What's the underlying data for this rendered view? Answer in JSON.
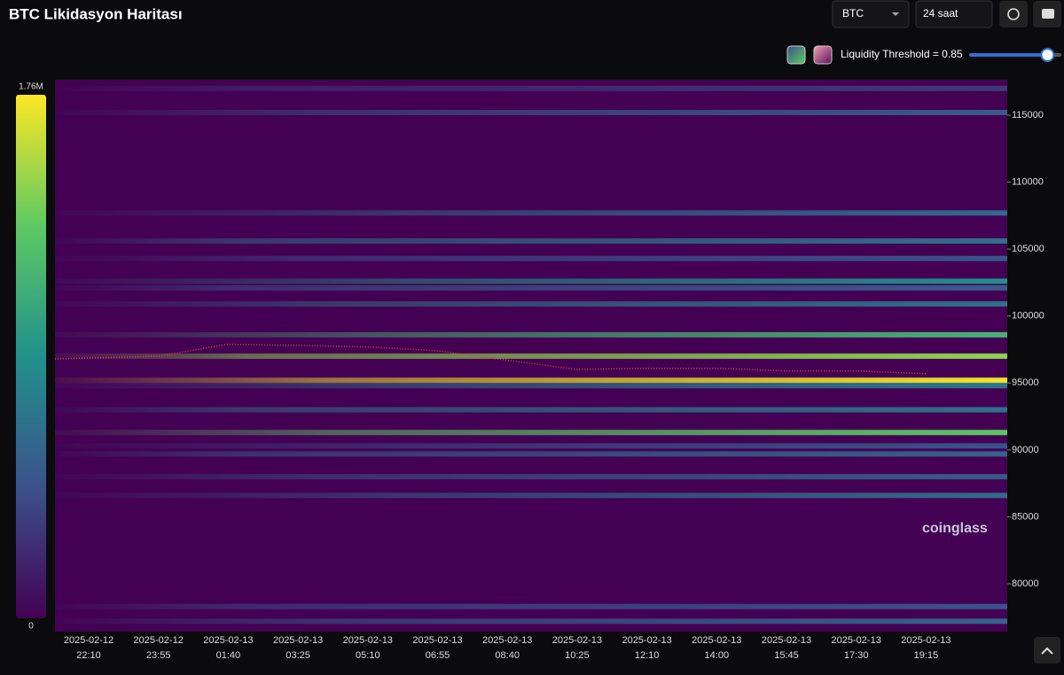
{
  "header": {
    "title": "BTC Likidasyon Haritası"
  },
  "controls": {
    "symbol": "BTC",
    "range": "24 saat",
    "threshold_label": "Liquidity Threshold = 0.85",
    "threshold": 0.85,
    "watermark": "coinglass"
  },
  "chart_data": {
    "type": "heatmap",
    "x": [
      {
        "date": "2025-02-12",
        "time": "22:10"
      },
      {
        "date": "2025-02-12",
        "time": "23:55"
      },
      {
        "date": "2025-02-13",
        "time": "01:40"
      },
      {
        "date": "2025-02-13",
        "time": "03:25"
      },
      {
        "date": "2025-02-13",
        "time": "05:10"
      },
      {
        "date": "2025-02-13",
        "time": "06:55"
      },
      {
        "date": "2025-02-13",
        "time": "08:40"
      },
      {
        "date": "2025-02-13",
        "time": "10:25"
      },
      {
        "date": "2025-02-13",
        "time": "12:10"
      },
      {
        "date": "2025-02-13",
        "time": "14:00"
      },
      {
        "date": "2025-02-13",
        "time": "15:45"
      },
      {
        "date": "2025-02-13",
        "time": "17:30"
      },
      {
        "date": "2025-02-13",
        "time": "19:15"
      }
    ],
    "ylim": [
      76430,
      117650
    ],
    "yticks": [
      80000,
      85000,
      90000,
      95000,
      100000,
      105000,
      110000,
      115000
    ],
    "zlim": [
      0,
      1760000
    ],
    "zticks": [
      {
        "value": 0,
        "label": "0"
      },
      {
        "value": 1760000,
        "label": "1.76M"
      }
    ],
    "price": {
      "color": "#e0403a",
      "values": [
        96800,
        97000,
        97900,
        97800,
        97700,
        97400,
        96700,
        96000,
        96100,
        96100,
        95900,
        95900,
        95700
      ]
    },
    "bands": [
      {
        "price": 117000,
        "value": 300000
      },
      {
        "price": 115200,
        "value": 500000
      },
      {
        "price": 107700,
        "value": 600000
      },
      {
        "price": 105600,
        "value": 650000
      },
      {
        "price": 104300,
        "value": 450000
      },
      {
        "price": 102600,
        "value": 850000
      },
      {
        "price": 102100,
        "value": 500000
      },
      {
        "price": 100900,
        "value": 650000
      },
      {
        "price": 98600,
        "value": 1150000
      },
      {
        "price": 97000,
        "value": 1450000
      },
      {
        "price": 95200,
        "value": 1720000
      },
      {
        "price": 94800,
        "value": 700000
      },
      {
        "price": 93000,
        "value": 650000
      },
      {
        "price": 91300,
        "value": 1300000
      },
      {
        "price": 90300,
        "value": 450000
      },
      {
        "price": 89700,
        "value": 550000
      },
      {
        "price": 88000,
        "value": 500000
      },
      {
        "price": 86600,
        "value": 600000
      },
      {
        "price": 78300,
        "value": 450000
      },
      {
        "price": 77200,
        "value": 550000
      }
    ]
  }
}
